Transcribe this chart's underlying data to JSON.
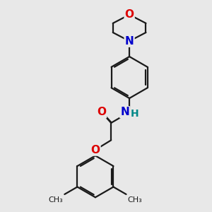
{
  "bg_color": "#e8e8e8",
  "bond_color": "#1a1a1a",
  "bond_width": 1.6,
  "dbo": 0.06,
  "atom_colors": {
    "O": "#dd0000",
    "N": "#0000cc",
    "H": "#008888",
    "C": "#1a1a1a"
  },
  "fs": 11
}
